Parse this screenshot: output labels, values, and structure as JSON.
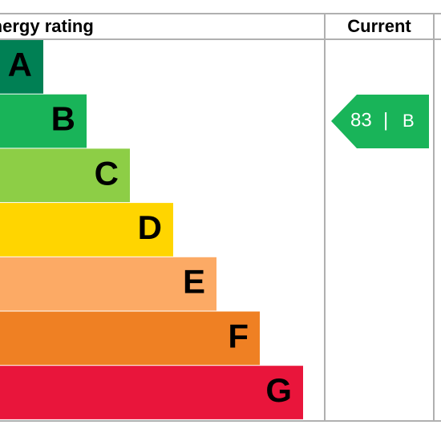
{
  "header": {
    "rating": "Energy rating",
    "current": "Current"
  },
  "bands": [
    {
      "letter": "A",
      "color": "#008054"
    },
    {
      "letter": "B",
      "color": "#19b459"
    },
    {
      "letter": "C",
      "color": "#8dce46"
    },
    {
      "letter": "D",
      "color": "#ffd500"
    },
    {
      "letter": "E",
      "color": "#fcaa65"
    },
    {
      "letter": "F",
      "color": "#ef8023"
    },
    {
      "letter": "G",
      "color": "#e9153b"
    }
  ],
  "current": {
    "score": 83,
    "band": "B",
    "color": "#19b459"
  }
}
